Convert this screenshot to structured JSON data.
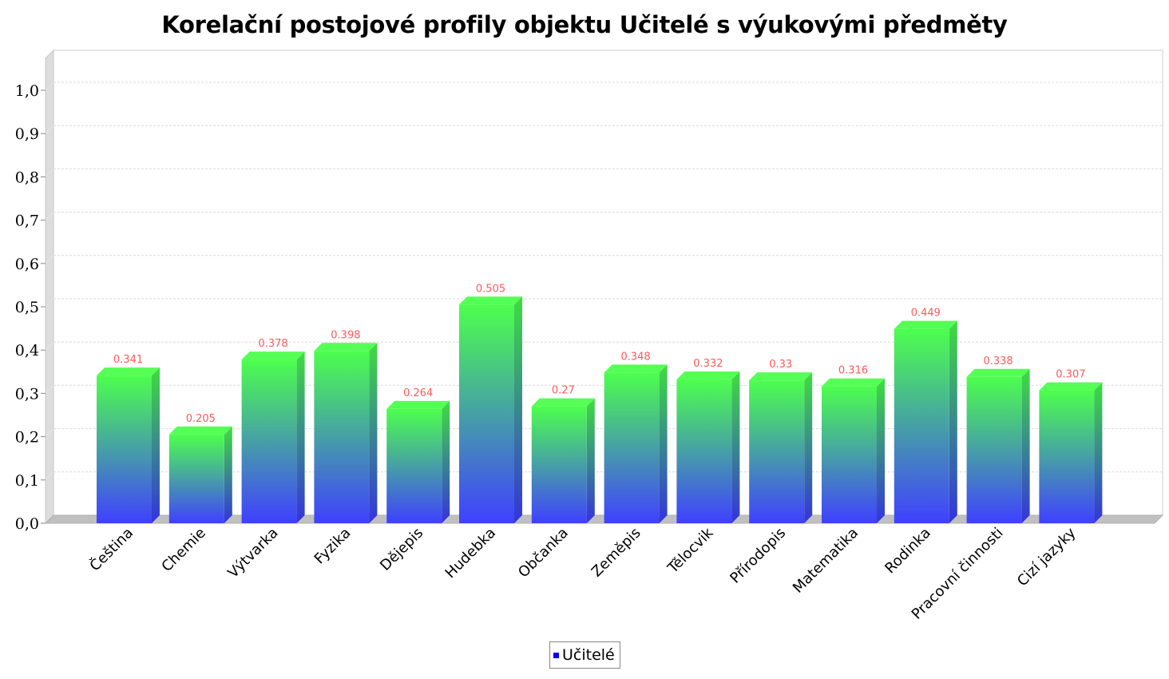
{
  "chart_data": {
    "type": "bar",
    "title": "Korelační postojové profily objektu Učitelé s výukovými předměty",
    "categories": [
      "Čeština",
      "Chemie",
      "Výtvarka",
      "Fyzika",
      "Dějepis",
      "Hudebka",
      "Občanka",
      "Zeměpis",
      "Tělocvik",
      "Přírodopis",
      "Matematika",
      "Rodinka",
      "Pracovní činnosti",
      "Cizí jazyky"
    ],
    "series": [
      {
        "name": "Učitelé",
        "values": [
          0.341,
          0.205,
          0.378,
          0.398,
          0.264,
          0.505,
          0.27,
          0.348,
          0.332,
          0.33,
          0.316,
          0.449,
          0.338,
          0.307
        ],
        "value_labels": [
          "0.341",
          "0.205",
          "0.378",
          "0.398",
          "0.264",
          "0.505",
          "0.27",
          "0.348",
          "0.332",
          "0.33",
          "0.316",
          "0.449",
          "0.338",
          "0.307"
        ]
      }
    ],
    "ylim": [
      0,
      1.0
    ],
    "yticks": [
      "0,0",
      "0,1",
      "0,2",
      "0,3",
      "0,4",
      "0,5",
      "0,6",
      "0,7",
      "0,8",
      "0,9",
      "1,0"
    ],
    "grid": true,
    "legend": "bottom-center",
    "colors": {
      "bar_top": "#4dff4d",
      "bar_bottom": "#4040ff",
      "value_label": "#ff5a5a",
      "legend_swatch": "#0000ff"
    }
  }
}
